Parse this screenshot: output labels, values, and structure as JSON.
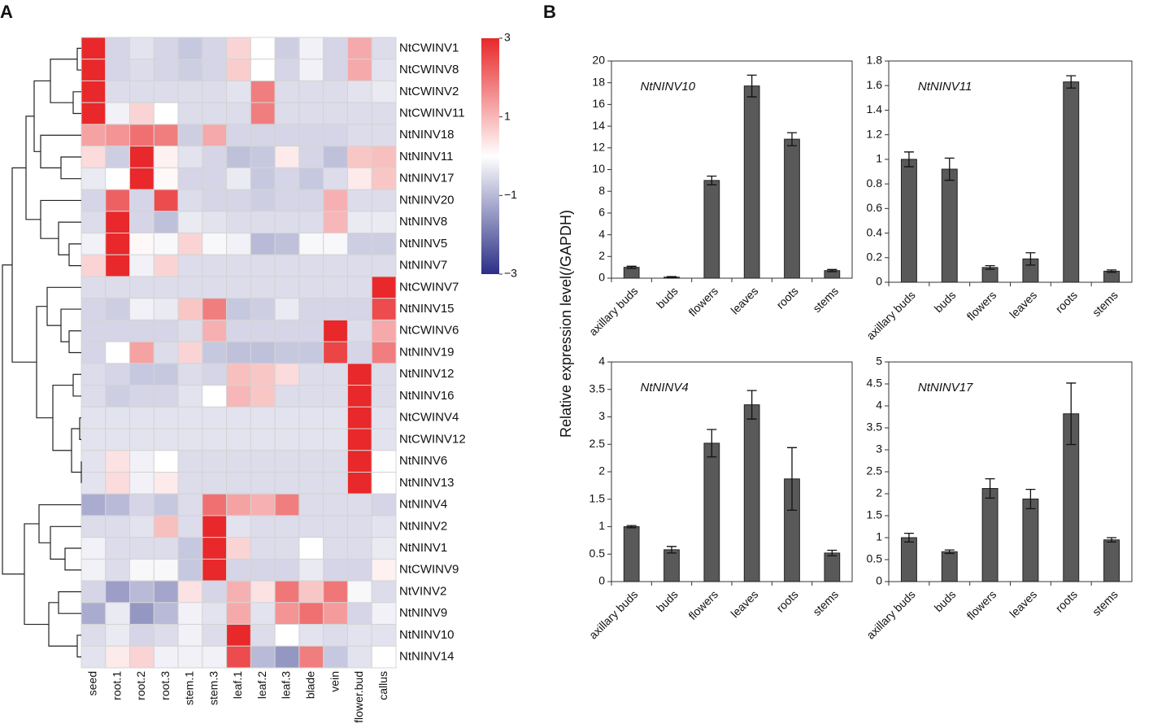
{
  "panels": [
    "A",
    "B"
  ],
  "ylabel": "Relative expression level(/GAPDH)",
  "chart_data": [
    {
      "type": "heatmap",
      "rows": [
        "NtCWINV1",
        "NtCWINV8",
        "NtCWINV2",
        "NtCWINV11",
        "NtNINV18",
        "NtNINV11",
        "NtNINV17",
        "NtNINV20",
        "NtNINV8",
        "NtNINV5",
        "NtNINV7",
        "NtCWINV7",
        "NtNINV15",
        "NtCWINV6",
        "NtNINV19",
        "NtNINV12",
        "NtNINV16",
        "NtCWINV4",
        "NtCWINV12",
        "NtNINV6",
        "NtNINV13",
        "NtNINV4",
        "NtNINV2",
        "NtNINV1",
        "NtCWINV9",
        "NtVINV2",
        "NtNINV9",
        "NtNINV10",
        "NtNINV14"
      ],
      "columns": [
        "seed",
        "root.1",
        "root.2",
        "root.3",
        "stem.1",
        "stem.3",
        "leaf.1",
        "leaf.2",
        "leaf.3",
        "blade",
        "vein",
        "flower.bud",
        "callus"
      ],
      "values": [
        [
          3,
          -0.6,
          -0.4,
          -0.6,
          -0.8,
          -0.6,
          0.6,
          0,
          -0.7,
          -0.2,
          -0.6,
          1.2,
          -0.5
        ],
        [
          3,
          -0.6,
          -0.5,
          -0.6,
          -0.7,
          -0.6,
          0.7,
          0,
          -0.6,
          -0.2,
          -0.6,
          1.2,
          -0.4
        ],
        [
          3,
          -0.5,
          -0.5,
          -0.5,
          -0.5,
          -0.5,
          -0.4,
          1.8,
          -0.5,
          -0.5,
          -0.5,
          -0.4,
          -0.3
        ],
        [
          3,
          -0.2,
          0.6,
          0,
          -0.5,
          -0.5,
          -0.5,
          1.8,
          -0.5,
          -0.5,
          -0.5,
          -0.5,
          -0.5
        ],
        [
          1.3,
          1.5,
          2,
          1.8,
          -0.7,
          1.2,
          -0.6,
          -0.6,
          -0.6,
          -0.6,
          -0.6,
          -0.5,
          -0.5
        ],
        [
          0.5,
          -0.7,
          3,
          0.2,
          -0.4,
          -0.6,
          -0.9,
          -0.8,
          0.3,
          -0.6,
          -0.9,
          0.8,
          0.9
        ],
        [
          -0.3,
          0,
          3,
          0.1,
          -0.6,
          -0.6,
          -0.3,
          -0.8,
          -0.6,
          -0.8,
          -0.5,
          0.3,
          0.8
        ],
        [
          -0.6,
          2.2,
          -0.6,
          2.5,
          -0.5,
          -0.6,
          -0.6,
          -0.7,
          -0.6,
          -0.6,
          1.1,
          -0.5,
          -0.5
        ],
        [
          -0.5,
          3,
          -0.6,
          -0.9,
          -0.3,
          -0.4,
          -0.5,
          -0.5,
          -0.5,
          -0.5,
          1,
          -0.3,
          -0.3
        ],
        [
          -0.2,
          3,
          0.1,
          -0.1,
          0.6,
          -0.1,
          -0.2,
          -1,
          -0.9,
          -0.1,
          -0.1,
          -0.7,
          -0.7
        ],
        [
          0.6,
          3,
          -0.2,
          0.6,
          -0.5,
          -0.5,
          -0.5,
          -0.5,
          -0.5,
          -0.5,
          -0.5,
          -0.5,
          -0.5
        ],
        [
          -0.5,
          -0.5,
          -0.5,
          -0.5,
          -0.5,
          -0.5,
          -0.5,
          -0.5,
          -0.5,
          -0.5,
          -0.5,
          -0.5,
          3
        ],
        [
          -0.6,
          -0.7,
          -0.2,
          -0.3,
          0.8,
          1.8,
          -0.8,
          -0.7,
          -0.3,
          -0.6,
          -0.6,
          -0.6,
          2.5
        ],
        [
          -0.6,
          -0.6,
          -0.6,
          -0.6,
          -0.5,
          1.1,
          -0.6,
          -0.6,
          -0.6,
          -0.6,
          3,
          -0.5,
          1.2
        ],
        [
          -0.6,
          0,
          1.3,
          -0.5,
          0.6,
          -0.8,
          -0.9,
          -0.9,
          -0.8,
          -0.8,
          2.6,
          -0.6,
          1.8
        ],
        [
          -0.5,
          -0.6,
          -0.8,
          -0.8,
          -0.5,
          -0.6,
          0.9,
          0.8,
          0.5,
          -0.5,
          -0.5,
          3,
          -0.5
        ],
        [
          -0.5,
          -0.7,
          -0.6,
          -0.6,
          -0.4,
          0,
          1,
          0.8,
          -0.5,
          -0.5,
          -0.5,
          3,
          -0.5
        ],
        [
          -0.4,
          -0.4,
          -0.4,
          -0.4,
          -0.4,
          -0.4,
          -0.4,
          -0.4,
          -0.4,
          -0.4,
          -0.4,
          3,
          -0.4
        ],
        [
          -0.4,
          -0.4,
          -0.4,
          -0.4,
          -0.4,
          -0.4,
          -0.4,
          -0.4,
          -0.4,
          -0.4,
          -0.4,
          3,
          -0.4
        ],
        [
          -0.4,
          0.4,
          -0.2,
          0,
          -0.5,
          -0.5,
          -0.5,
          -0.5,
          -0.5,
          -0.5,
          -0.5,
          3,
          0
        ],
        [
          -0.4,
          0.5,
          -0.2,
          0.3,
          -0.5,
          -0.5,
          -0.5,
          -0.5,
          -0.5,
          -0.5,
          -0.5,
          3,
          0
        ],
        [
          -1.2,
          -1,
          -0.6,
          -0.8,
          -0.5,
          2,
          1.3,
          1.1,
          1.8,
          -0.5,
          -0.5,
          -0.5,
          -0.6
        ],
        [
          -0.5,
          -0.5,
          -0.4,
          0.9,
          -0.5,
          3,
          -0.4,
          -0.5,
          -0.5,
          -0.5,
          -0.5,
          -0.5,
          -0.4
        ],
        [
          -0.2,
          -0.5,
          -0.5,
          -0.5,
          -0.8,
          3,
          0.6,
          -0.5,
          -0.5,
          0,
          -0.5,
          -0.5,
          -0.3
        ],
        [
          -0.2,
          -0.5,
          -0.1,
          -0.1,
          -0.8,
          3,
          -0.6,
          -0.6,
          -0.6,
          -0.3,
          -0.6,
          -0.6,
          0.2
        ],
        [
          -0.6,
          -1.4,
          -1,
          -1.3,
          0.4,
          -0.6,
          1.1,
          0.4,
          1.9,
          0.8,
          1.9,
          -0.1,
          -0.5
        ],
        [
          -1.2,
          -0.3,
          -1.5,
          -1,
          -0.2,
          -0.4,
          1.2,
          -0.4,
          1.5,
          2,
          1.4,
          -0.6,
          -0.2
        ],
        [
          -0.5,
          -0.3,
          -0.6,
          -0.5,
          -0.2,
          -0.5,
          3,
          -0.5,
          0,
          -0.4,
          -0.5,
          -0.4,
          -0.4
        ],
        [
          -0.4,
          0.3,
          0.6,
          -0.2,
          -0.2,
          -0.2,
          2.5,
          -1,
          -1.5,
          1.8,
          -0.8,
          -0.4,
          0
        ]
      ],
      "zlim": [
        -3,
        3
      ],
      "zticks": [
        3,
        1,
        {
          "value": -1,
          "label": "−1"
        },
        {
          "value": -3,
          "label": "−3"
        }
      ],
      "colors": [
        "#2b2f86",
        "#ffffff",
        "#e8282a"
      ]
    },
    {
      "type": "bar",
      "title": "NtNINV10",
      "categories": [
        "axillary buds",
        "buds",
        "flowers",
        "leaves",
        "roots",
        "stems"
      ],
      "values": [
        1.0,
        0.1,
        9.0,
        17.7,
        12.8,
        0.7
      ],
      "errors": [
        0.1,
        0.05,
        0.4,
        1.0,
        0.6,
        0.1
      ],
      "ylim": [
        0,
        20
      ],
      "yticks": [
        0,
        2,
        4,
        6,
        8,
        10,
        12,
        14,
        16,
        18,
        20
      ],
      "color": "#595959"
    },
    {
      "type": "bar",
      "title": "NtNINV11",
      "categories": [
        "axillary buds",
        "buds",
        "flowers",
        "leaves",
        "roots",
        "stems"
      ],
      "values": [
        1.0,
        0.92,
        0.12,
        0.19,
        1.63,
        0.09
      ],
      "errors": [
        0.06,
        0.09,
        0.015,
        0.05,
        0.05,
        0.01
      ],
      "ylim": [
        0,
        1.8
      ],
      "yticks": [
        0,
        0.2,
        0.4,
        0.6,
        0.8,
        1,
        1.2,
        1.4,
        1.6,
        1.8
      ],
      "color": "#595959"
    },
    {
      "type": "bar",
      "title": "NtNINV4",
      "categories": [
        "axillary buds",
        "buds",
        "flowers",
        "leaves",
        "roots",
        "stems"
      ],
      "values": [
        1.0,
        0.58,
        2.52,
        3.22,
        1.87,
        0.52
      ],
      "errors": [
        0.02,
        0.06,
        0.25,
        0.26,
        0.57,
        0.05
      ],
      "ylim": [
        0,
        4
      ],
      "yticks": [
        0,
        0.5,
        1,
        1.5,
        2,
        2.5,
        3,
        3.5,
        4
      ],
      "color": "#595959"
    },
    {
      "type": "bar",
      "title": "NtNINV17",
      "categories": [
        "axillary buds",
        "buds",
        "flowers",
        "leaves",
        "roots",
        "stems"
      ],
      "values": [
        1.0,
        0.68,
        2.12,
        1.88,
        3.82,
        0.95
      ],
      "errors": [
        0.1,
        0.04,
        0.22,
        0.22,
        0.7,
        0.05
      ],
      "ylim": [
        0,
        5
      ],
      "yticks": [
        0,
        0.5,
        1,
        1.5,
        2,
        2.5,
        3,
        3.5,
        4,
        4.5,
        5
      ],
      "color": "#595959"
    }
  ]
}
